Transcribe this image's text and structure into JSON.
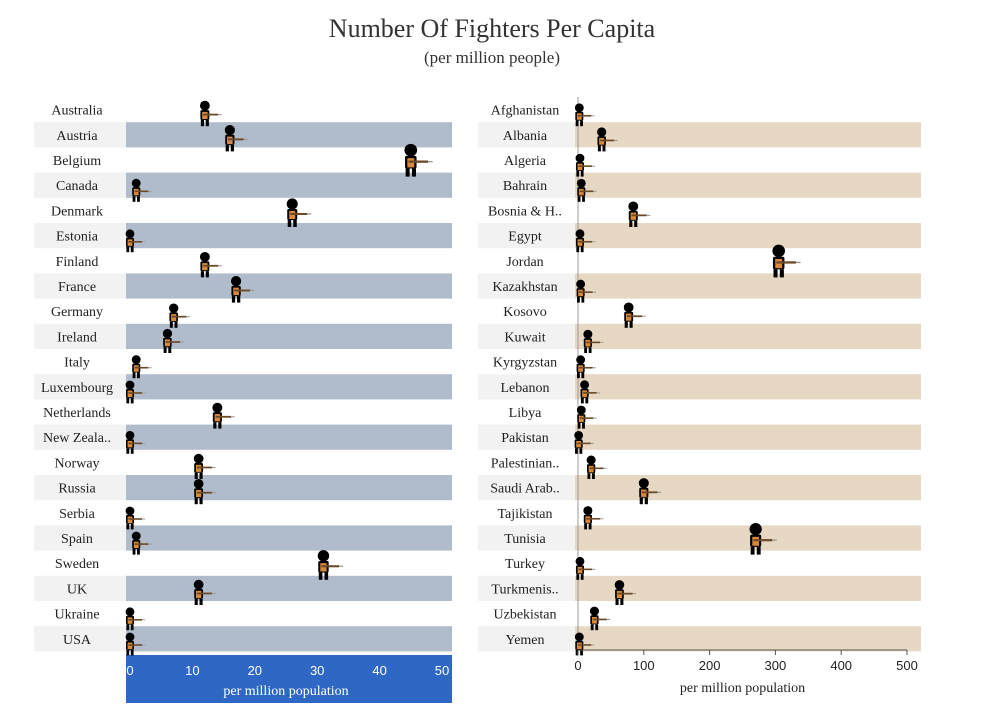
{
  "title": "Number Of Fighters Per Capita",
  "subtitle": "(per million people)",
  "colors": {
    "left_band": "#b0bccb",
    "right_band": "#e6d8c3",
    "axis_box": "#2f68c4",
    "figure": "#000000",
    "vest": "#d9893a"
  },
  "chart_data": [
    {
      "type": "scatter",
      "xlabel": "per million population",
      "xlim": [
        0,
        50
      ],
      "xticks": [
        "0",
        "10",
        "20",
        "30",
        "40",
        "50"
      ],
      "categories": [
        "Australia",
        "Austria",
        "Belgium",
        "Canada",
        "Denmark",
        "Estonia",
        "Finland",
        "France",
        "Germany",
        "Ireland",
        "Italy",
        "Luxembourg",
        "Netherlands",
        "New Zeala..",
        "Norway",
        "Russia",
        "Serbia",
        "Spain",
        "Sweden",
        "UK",
        "Ukraine",
        "USA"
      ],
      "values": [
        12,
        16,
        45,
        1,
        26,
        0,
        12,
        17,
        7,
        6,
        1,
        0,
        14,
        0,
        11,
        11,
        0,
        1,
        31,
        11,
        0,
        0
      ]
    },
    {
      "type": "scatter",
      "xlabel": "per million population",
      "xlim": [
        0,
        500
      ],
      "xticks": [
        "0",
        "100",
        "200",
        "300",
        "400",
        "500"
      ],
      "categories": [
        "Afghanistan",
        "Albania",
        "Algeria",
        "Bahrain",
        "Bosnia & H..",
        "Egypt",
        "Jordan",
        "Kazakhstan",
        "Kosovo",
        "Kuwait",
        "Kyrgyzstan",
        "Lebanon",
        "Libya",
        "Pakistan",
        "Palestinian..",
        "Saudi Arab..",
        "Tajikistan",
        "Tunisia",
        "Turkey",
        "Turkmenis..",
        "Uzbekistan",
        "Yemen"
      ],
      "values": [
        2,
        36,
        3,
        5,
        84,
        3,
        305,
        4,
        77,
        15,
        4,
        10,
        5,
        1,
        20,
        100,
        15,
        270,
        3,
        63,
        25,
        2
      ]
    }
  ]
}
